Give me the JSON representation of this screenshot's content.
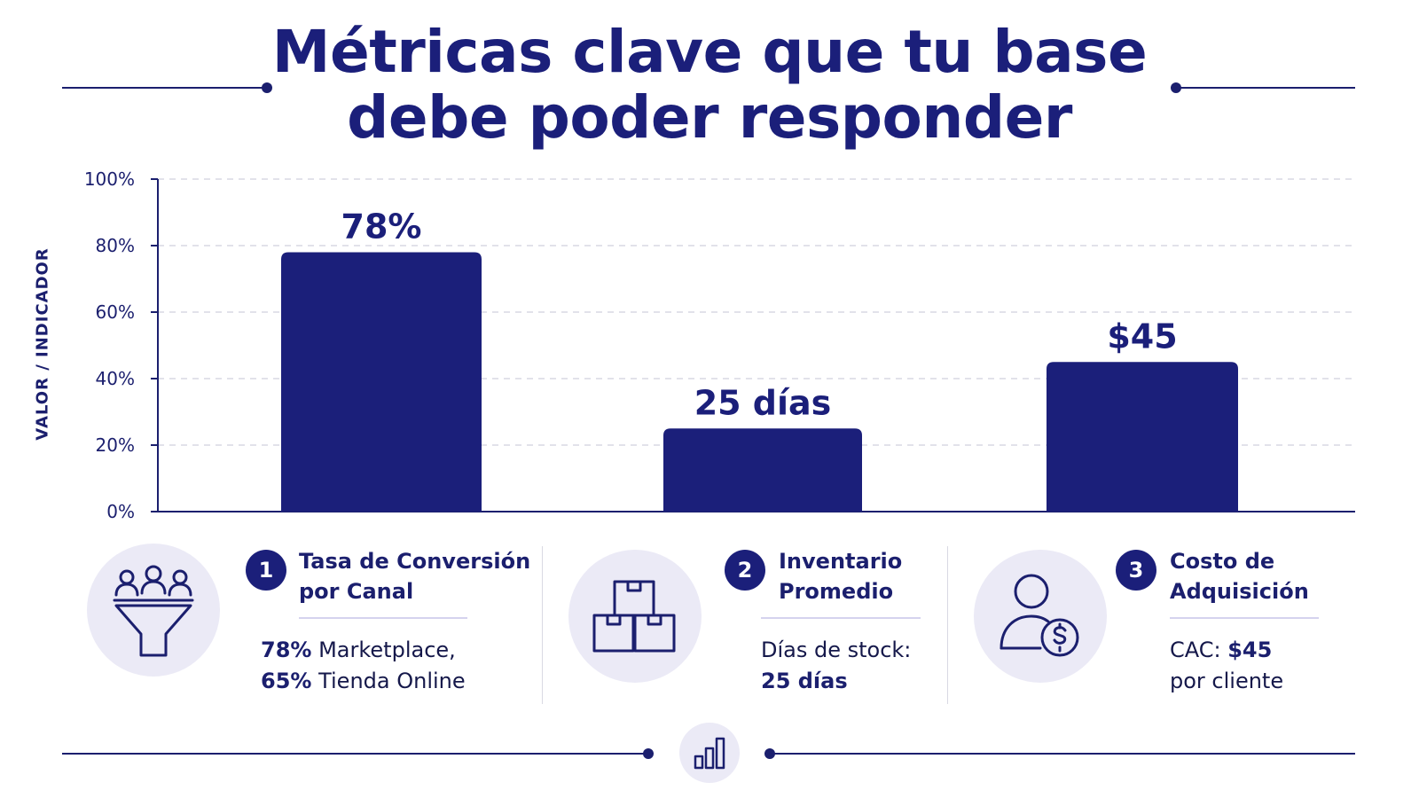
{
  "title": {
    "line1": "Métricas clave que tu base",
    "line2": "debe poder responder"
  },
  "chart_data": {
    "type": "bar",
    "categories": [
      "Tasa de Conversión por Canal",
      "Inventario Promedio",
      "Costo de Adquisición"
    ],
    "values": [
      78,
      25,
      45
    ],
    "data_labels": [
      "78%",
      "25 días",
      "$45"
    ],
    "ylabel": "VALOR / INDICADOR",
    "ylim": [
      0,
      100
    ],
    "yticks": [
      "0%",
      "20%",
      "40%",
      "60%",
      "80%",
      "100%"
    ],
    "grid": true,
    "bar_color": "#1b1f7a"
  },
  "metrics": [
    {
      "number": "1",
      "title_line1": "Tasa de Conversión",
      "title_line2": "por Canal",
      "icon": "funnel-people-icon",
      "desc_line1_bold": "78%",
      "desc_line1_text": " Marketplace,",
      "desc_line2_bold": "65%",
      "desc_line2_text": " Tienda Online"
    },
    {
      "number": "2",
      "title_line1": "Inventario",
      "title_line2": "Promedio",
      "icon": "boxes-icon",
      "desc_line1_text": "Días de stock:",
      "desc_line2_bold": "25 días"
    },
    {
      "number": "3",
      "title_line1": "Costo de",
      "title_line2": "Adquisición",
      "icon": "user-dollar-icon",
      "desc_line1_text": "CAC: ",
      "desc_line1_bold": "$45",
      "desc_line2_text": "por cliente"
    }
  ],
  "footer_icon": "bar-chart-icon",
  "colors": {
    "primary": "#1b1f7a",
    "soft": "#ebeaf6",
    "grid": "#d9d9e3"
  }
}
